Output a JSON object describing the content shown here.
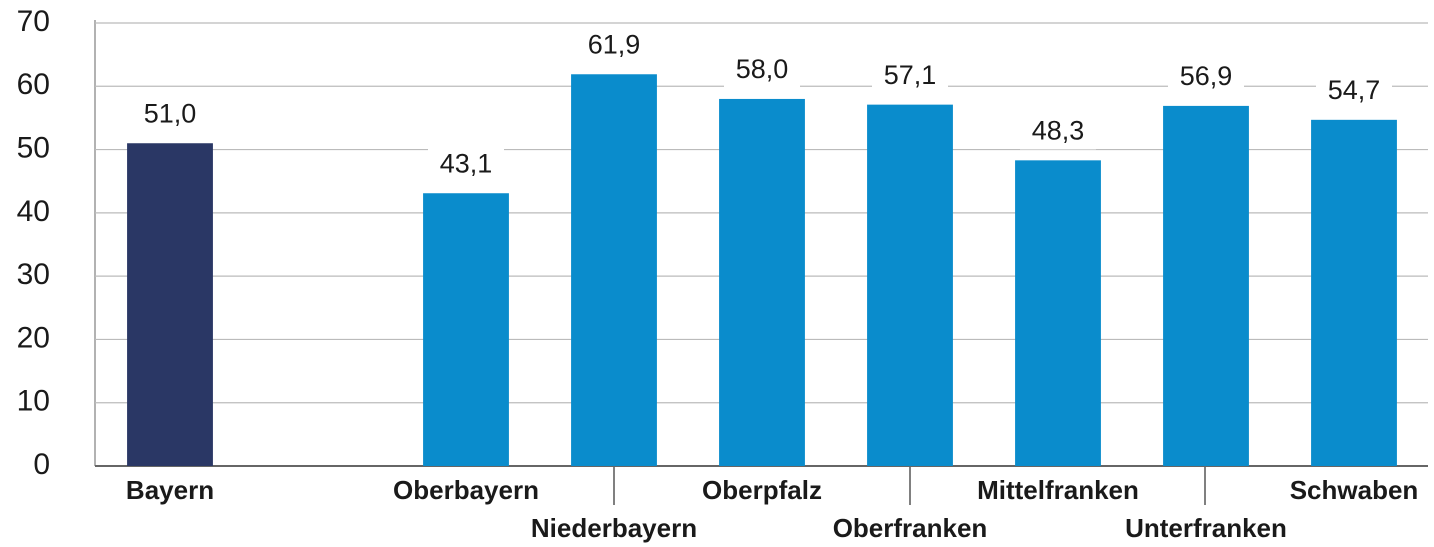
{
  "chart_data": {
    "type": "bar",
    "categories": [
      "Bayern",
      null,
      "Oberbayern",
      "Niederbayern",
      "Oberpfalz",
      "Oberfranken",
      "Mittelfranken",
      "Unterfranken",
      "Schwaben"
    ],
    "values": [
      51.0,
      null,
      43.1,
      61.9,
      58.0,
      57.1,
      48.3,
      56.9,
      54.7
    ],
    "value_labels": [
      "51,0",
      null,
      "43,1",
      "61,9",
      "58,0",
      "57,1",
      "48,3",
      "56,9",
      "54,7"
    ],
    "colors": [
      "#2a3765",
      null,
      "#0a8ccc",
      "#0a8ccc",
      "#0a8ccc",
      "#0a8ccc",
      "#0a8ccc",
      "#0a8ccc",
      "#0a8ccc"
    ],
    "ylim": [
      0,
      70
    ],
    "yticks": [
      0,
      10,
      20,
      30,
      40,
      50,
      60,
      70
    ],
    "grid": true
  }
}
